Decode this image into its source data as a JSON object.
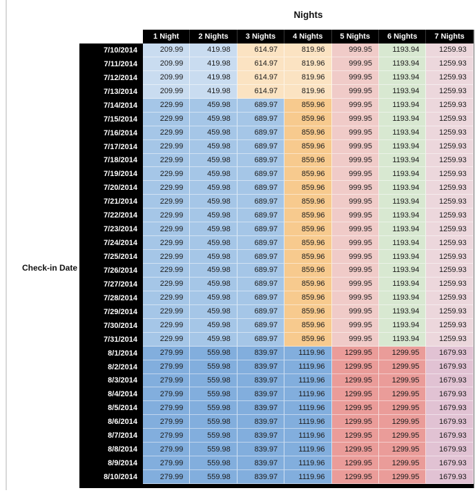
{
  "chart_data": {
    "type": "table",
    "title": "Nights",
    "row_axis_label": "Check-in Date",
    "columns": [
      "1 Night",
      "2 Nights",
      "3 Nights",
      "4 Nights",
      "5 Nights",
      "6 Nights",
      "7 Nights"
    ],
    "rows": [
      {
        "date": "7/10/2014",
        "values": [
          "209.99",
          "419.98",
          "614.97",
          "819.96",
          "999.95",
          "1193.94",
          "1259.93"
        ]
      },
      {
        "date": "7/11/2014",
        "values": [
          "209.99",
          "419.98",
          "614.97",
          "819.96",
          "999.95",
          "1193.94",
          "1259.93"
        ]
      },
      {
        "date": "7/12/2014",
        "values": [
          "209.99",
          "419.98",
          "614.97",
          "819.96",
          "999.95",
          "1193.94",
          "1259.93"
        ]
      },
      {
        "date": "7/13/2014",
        "values": [
          "209.99",
          "419.98",
          "614.97",
          "819.96",
          "999.95",
          "1193.94",
          "1259.93"
        ]
      },
      {
        "date": "7/14/2014",
        "values": [
          "229.99",
          "459.98",
          "689.97",
          "859.96",
          "999.95",
          "1193.94",
          "1259.93"
        ]
      },
      {
        "date": "7/15/2014",
        "values": [
          "229.99",
          "459.98",
          "689.97",
          "859.96",
          "999.95",
          "1193.94",
          "1259.93"
        ]
      },
      {
        "date": "7/16/2014",
        "values": [
          "229.99",
          "459.98",
          "689.97",
          "859.96",
          "999.95",
          "1193.94",
          "1259.93"
        ]
      },
      {
        "date": "7/17/2014",
        "values": [
          "229.99",
          "459.98",
          "689.97",
          "859.96",
          "999.95",
          "1193.94",
          "1259.93"
        ]
      },
      {
        "date": "7/18/2014",
        "values": [
          "229.99",
          "459.98",
          "689.97",
          "859.96",
          "999.95",
          "1193.94",
          "1259.93"
        ]
      },
      {
        "date": "7/19/2014",
        "values": [
          "229.99",
          "459.98",
          "689.97",
          "859.96",
          "999.95",
          "1193.94",
          "1259.93"
        ]
      },
      {
        "date": "7/20/2014",
        "values": [
          "229.99",
          "459.98",
          "689.97",
          "859.96",
          "999.95",
          "1193.94",
          "1259.93"
        ]
      },
      {
        "date": "7/21/2014",
        "values": [
          "229.99",
          "459.98",
          "689.97",
          "859.96",
          "999.95",
          "1193.94",
          "1259.93"
        ]
      },
      {
        "date": "7/22/2014",
        "values": [
          "229.99",
          "459.98",
          "689.97",
          "859.96",
          "999.95",
          "1193.94",
          "1259.93"
        ]
      },
      {
        "date": "7/23/2014",
        "values": [
          "229.99",
          "459.98",
          "689.97",
          "859.96",
          "999.95",
          "1193.94",
          "1259.93"
        ]
      },
      {
        "date": "7/24/2014",
        "values": [
          "229.99",
          "459.98",
          "689.97",
          "859.96",
          "999.95",
          "1193.94",
          "1259.93"
        ]
      },
      {
        "date": "7/25/2014",
        "values": [
          "229.99",
          "459.98",
          "689.97",
          "859.96",
          "999.95",
          "1193.94",
          "1259.93"
        ]
      },
      {
        "date": "7/26/2014",
        "values": [
          "229.99",
          "459.98",
          "689.97",
          "859.96",
          "999.95",
          "1193.94",
          "1259.93"
        ]
      },
      {
        "date": "7/27/2014",
        "values": [
          "229.99",
          "459.98",
          "689.97",
          "859.96",
          "999.95",
          "1193.94",
          "1259.93"
        ]
      },
      {
        "date": "7/28/2014",
        "values": [
          "229.99",
          "459.98",
          "689.97",
          "859.96",
          "999.95",
          "1193.94",
          "1259.93"
        ]
      },
      {
        "date": "7/29/2014",
        "values": [
          "229.99",
          "459.98",
          "689.97",
          "859.96",
          "999.95",
          "1193.94",
          "1259.93"
        ]
      },
      {
        "date": "7/30/2014",
        "values": [
          "229.99",
          "459.98",
          "689.97",
          "859.96",
          "999.95",
          "1193.94",
          "1259.93"
        ]
      },
      {
        "date": "7/31/2014",
        "values": [
          "229.99",
          "459.98",
          "689.97",
          "859.96",
          "999.95",
          "1193.94",
          "1259.93"
        ]
      },
      {
        "date": "8/1/2014",
        "values": [
          "279.99",
          "559.98",
          "839.97",
          "1119.96",
          "1299.95",
          "1299.95",
          "1679.93"
        ]
      },
      {
        "date": "8/2/2014",
        "values": [
          "279.99",
          "559.98",
          "839.97",
          "1119.96",
          "1299.95",
          "1299.95",
          "1679.93"
        ]
      },
      {
        "date": "8/3/2014",
        "values": [
          "279.99",
          "559.98",
          "839.97",
          "1119.96",
          "1299.95",
          "1299.95",
          "1679.93"
        ]
      },
      {
        "date": "8/4/2014",
        "values": [
          "279.99",
          "559.98",
          "839.97",
          "1119.96",
          "1299.95",
          "1299.95",
          "1679.93"
        ]
      },
      {
        "date": "8/5/2014",
        "values": [
          "279.99",
          "559.98",
          "839.97",
          "1119.96",
          "1299.95",
          "1299.95",
          "1679.93"
        ]
      },
      {
        "date": "8/6/2014",
        "values": [
          "279.99",
          "559.98",
          "839.97",
          "1119.96",
          "1299.95",
          "1299.95",
          "1679.93"
        ]
      },
      {
        "date": "8/7/2014",
        "values": [
          "279.99",
          "559.98",
          "839.97",
          "1119.96",
          "1299.95",
          "1299.95",
          "1679.93"
        ]
      },
      {
        "date": "8/8/2014",
        "values": [
          "279.99",
          "559.98",
          "839.97",
          "1119.96",
          "1299.95",
          "1299.95",
          "1679.93"
        ]
      },
      {
        "date": "8/9/2014",
        "values": [
          "279.99",
          "559.98",
          "839.97",
          "1119.96",
          "1299.95",
          "1299.95",
          "1679.93"
        ]
      },
      {
        "date": "8/10/2014",
        "values": [
          "279.99",
          "559.98",
          "839.97",
          "1119.96",
          "1299.95",
          "1299.95",
          "1679.93"
        ]
      }
    ]
  },
  "format": {
    "header_bg": "#000000",
    "header_text": "#ffffff",
    "palette": {
      "lightBlue": "#c9dcf0",
      "lightOrange": "#fbe3c2",
      "lightRed": "#f0cbc8",
      "lightGreen": "#d8e8d1",
      "lightPink": "#ecd7dc",
      "midBlue": "#a5c6e7",
      "midOrange": "#f7ca8e",
      "deepBlue": "#82aedd",
      "red": "#ea9c99",
      "mauve": "#e1c2d3"
    },
    "sections": [
      {
        "from": 0,
        "to": 3,
        "colors": [
          "lightBlue",
          "lightBlue",
          "lightOrange",
          "lightOrange",
          "lightRed",
          "lightGreen",
          "lightPink"
        ]
      },
      {
        "from": 4,
        "to": 21,
        "colors": [
          "midBlue",
          "midBlue",
          "midBlue",
          "midOrange",
          "lightRed",
          "lightGreen",
          "lightPink"
        ]
      },
      {
        "from": 22,
        "to": 31,
        "colors": [
          "deepBlue",
          "deepBlue",
          "deepBlue",
          "deepBlue",
          "red",
          "red",
          "mauve"
        ]
      }
    ]
  }
}
